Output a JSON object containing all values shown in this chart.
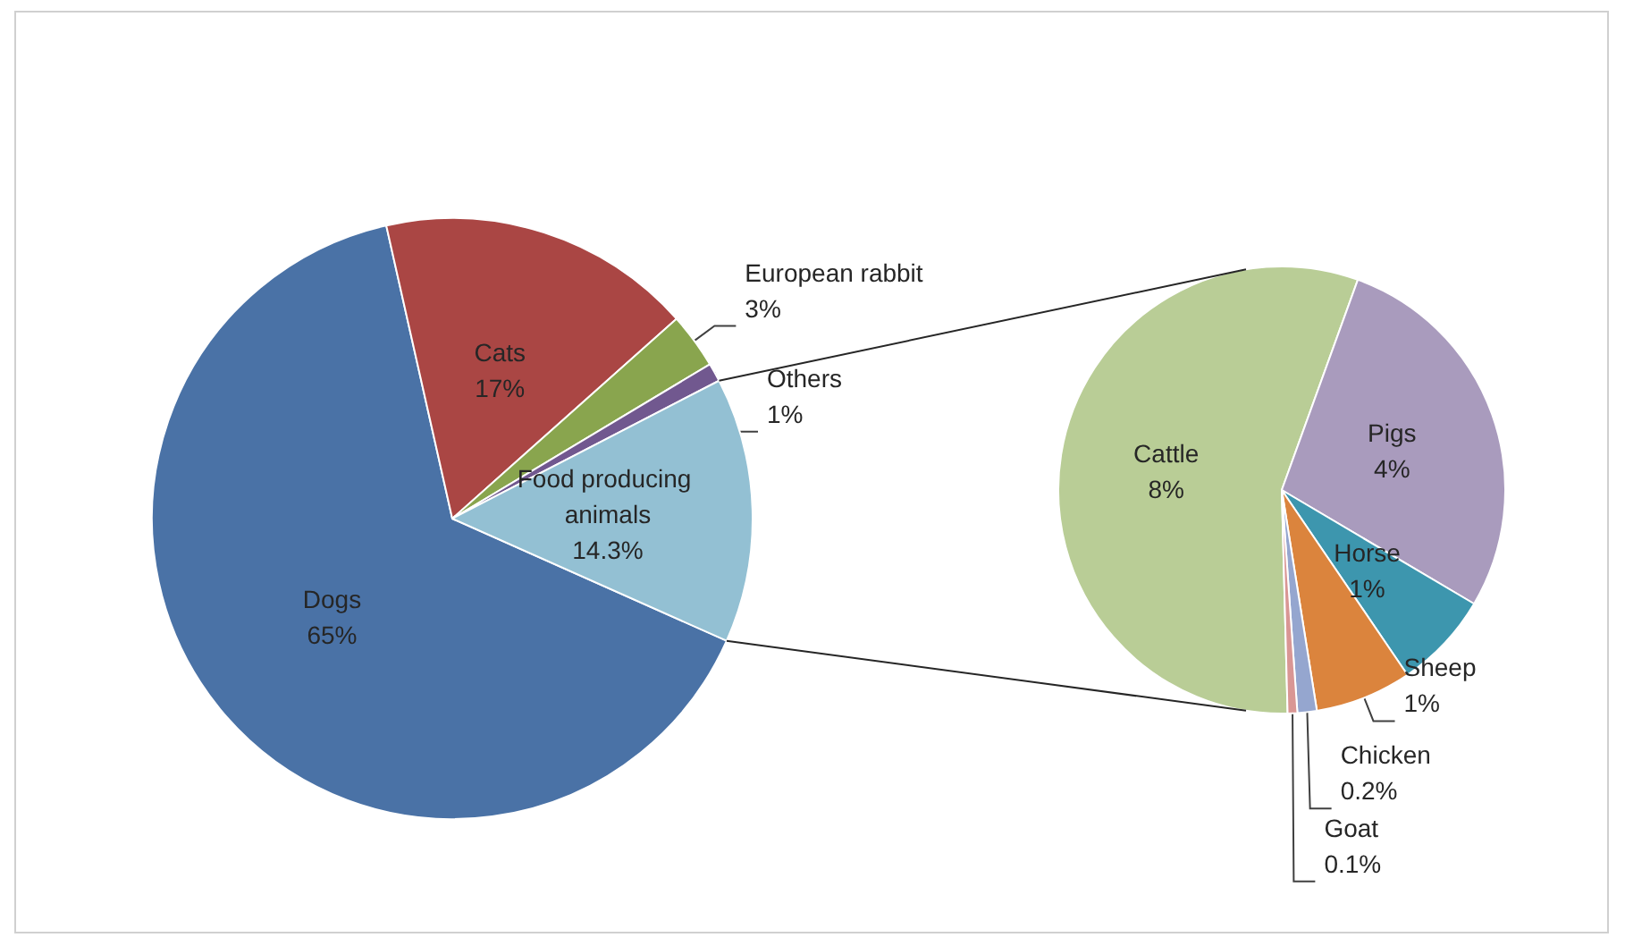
{
  "chart_data": [
    {
      "type": "pie",
      "categories": [
        "Dogs",
        "Cats",
        "European rabbit",
        "Others",
        "Food producing animals"
      ],
      "values": [
        65,
        17,
        3,
        1,
        14.3
      ],
      "value_labels": [
        "65%",
        "17%",
        "3%",
        "1%",
        "14.3%"
      ],
      "colors": [
        "#4a72a6",
        "#aa4644",
        "#89a54e",
        "#71588f",
        "#93c0d3"
      ]
    },
    {
      "type": "pie",
      "categories": [
        "Cattle",
        "Pigs",
        "Horse",
        "Sheep",
        "Chicken",
        "Goat"
      ],
      "values": [
        8,
        4,
        1,
        1,
        0.2,
        0.1
      ],
      "value_labels": [
        "8%",
        "4%",
        "1%",
        "1%",
        "0.2%",
        "0.1%"
      ],
      "colors": [
        "#b9cd96",
        "#a99bbd",
        "#3d96ae",
        "#db843d",
        "#95a6cf",
        "#d99694"
      ]
    }
  ]
}
